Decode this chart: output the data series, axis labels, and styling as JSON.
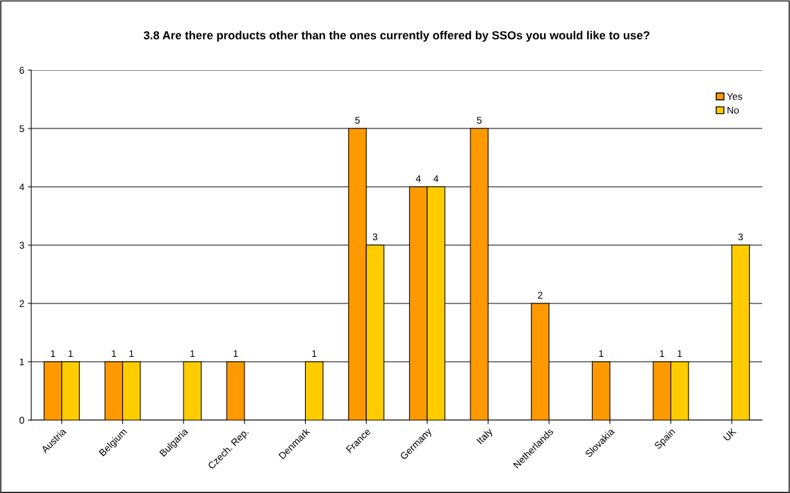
{
  "chart_data": {
    "type": "bar",
    "title": "3.8 Are there products other than the ones currently offered by SSOs you would like to use?",
    "categories": [
      "Austria",
      "Belgium",
      "Bulgaria",
      "Czech. Rep.",
      "Denmark",
      "France",
      "Germany",
      "Italy",
      "Netherlands",
      "Slovakia",
      "Spain",
      "UK"
    ],
    "series": [
      {
        "name": "Yes",
        "color": "#ff9900",
        "values": [
          1,
          1,
          null,
          1,
          null,
          5,
          4,
          5,
          2,
          1,
          1,
          null
        ]
      },
      {
        "name": "No",
        "color": "#ffcc00",
        "values": [
          1,
          1,
          1,
          null,
          1,
          3,
          4,
          null,
          null,
          null,
          1,
          3
        ]
      }
    ],
    "ylim": [
      0,
      6
    ],
    "yticks": [
      0,
      1,
      2,
      3,
      4,
      5,
      6
    ],
    "grid": "y",
    "legend": "top right",
    "data_labels": true
  }
}
